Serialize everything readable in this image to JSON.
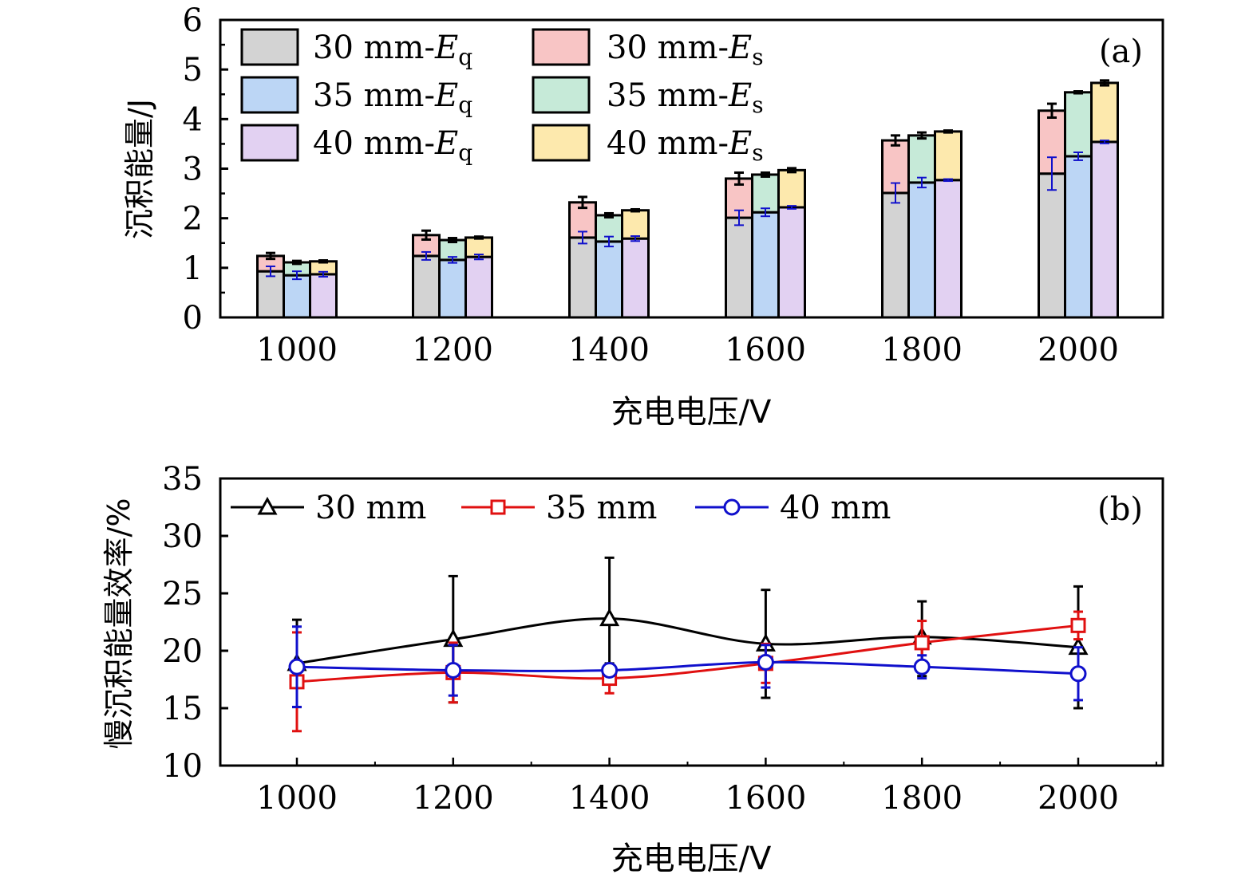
{
  "chart_data": [
    {
      "type": "bar",
      "stacked": true,
      "panel_label": "(a)",
      "title": "",
      "xlabel": "充电电压/V",
      "ylabel": "沉积能量/J",
      "ylim": [
        0,
        6
      ],
      "yticks": [
        "0",
        "1",
        "2",
        "3",
        "4",
        "5",
        "6"
      ],
      "categories": [
        "1000",
        "1200",
        "1400",
        "1600",
        "1800",
        "2000"
      ],
      "legend_position": "top-left",
      "groups": [
        {
          "name": "30 mm",
          "series": [
            {
              "name": "30 mm-Eq",
              "label_main": "30 mm-",
              "label_var": "E",
              "label_sub": "q",
              "color": "#d3d3d3",
              "values": [
                0.93,
                1.24,
                1.61,
                2.01,
                2.51,
                2.9
              ],
              "errors": [
                0.1,
                0.08,
                0.12,
                0.15,
                0.2,
                0.33
              ]
            },
            {
              "name": "30 mm-Es",
              "label_main": "30 mm-",
              "label_var": "E",
              "label_sub": "s",
              "color": "#f8c5c5",
              "totals": [
                1.24,
                1.66,
                2.32,
                2.8,
                3.57,
                4.17
              ],
              "errors": [
                0.06,
                0.09,
                0.11,
                0.12,
                0.1,
                0.14
              ]
            }
          ]
        },
        {
          "name": "35 mm",
          "series": [
            {
              "name": "35 mm-Eq",
              "label_main": "35 mm-",
              "label_var": "E",
              "label_sub": "q",
              "color": "#bcd6f5",
              "values": [
                0.85,
                1.16,
                1.53,
                2.12,
                2.72,
                3.25
              ],
              "errors": [
                0.08,
                0.06,
                0.1,
                0.08,
                0.1,
                0.08
              ]
            },
            {
              "name": "35 mm-Es",
              "label_main": "35 mm-",
              "label_var": "E",
              "label_sub": "s",
              "color": "#c6ead8",
              "totals": [
                1.11,
                1.56,
                2.06,
                2.88,
                3.67,
                4.54
              ],
              "errors": [
                0.03,
                0.04,
                0.04,
                0.04,
                0.06,
                0.02
              ]
            }
          ]
        },
        {
          "name": "40 mm",
          "series": [
            {
              "name": "40 mm-Eq",
              "label_main": "40 mm-",
              "label_var": "E",
              "label_sub": "q",
              "color": "#e2d1f2",
              "values": [
                0.87,
                1.22,
                1.59,
                2.22,
                2.77,
                3.54
              ],
              "errors": [
                0.05,
                0.05,
                0.05,
                0.03,
                0.02,
                0.03
              ]
            },
            {
              "name": "40 mm-Es",
              "label_main": "40 mm-",
              "label_var": "E",
              "label_sub": "s",
              "color": "#fde9ad",
              "totals": [
                1.13,
                1.61,
                2.16,
                2.97,
                3.75,
                4.73
              ],
              "errors": [
                0.02,
                0.02,
                0.02,
                0.04,
                0.02,
                0.05
              ]
            }
          ]
        }
      ],
      "error_colors": {
        "Eq": "#1010cc",
        "Es": "#000000"
      }
    },
    {
      "type": "line",
      "panel_label": "(b)",
      "title": "",
      "xlabel": "充电电压/V",
      "ylabel": "慢沉积能量效率/%",
      "ylim": [
        10,
        35
      ],
      "xlim": [
        800,
        2100
      ],
      "yticks": [
        "10",
        "15",
        "20",
        "25",
        "30",
        "35"
      ],
      "x": [
        1000,
        1200,
        1400,
        1600,
        1800,
        2000
      ],
      "xticks": [
        "1000",
        "1200",
        "1400",
        "1600",
        "1800",
        "2000"
      ],
      "legend_position": "top-left",
      "series": [
        {
          "name": "30 mm",
          "marker": "triangle",
          "color": "#000000",
          "values": [
            18.9,
            21.0,
            22.8,
            20.6,
            21.2,
            20.3
          ],
          "err_low": [
            3.8,
            5.5,
            3.9,
            4.7,
            3.4,
            5.3
          ],
          "err_high": [
            3.8,
            5.5,
            5.3,
            4.7,
            3.1,
            5.3
          ]
        },
        {
          "name": "35 mm",
          "marker": "square",
          "color": "#e01010",
          "values": [
            17.3,
            18.1,
            17.6,
            18.9,
            20.7,
            22.2
          ],
          "err_low": [
            4.3,
            2.6,
            1.3,
            1.7,
            2.0,
            1.2
          ],
          "err_high": [
            4.3,
            2.6,
            0.0,
            1.7,
            1.9,
            1.2
          ]
        },
        {
          "name": "40 mm",
          "marker": "circle",
          "color": "#1010cc",
          "values": [
            18.6,
            18.3,
            18.3,
            19.0,
            18.6,
            18.0
          ],
          "err_low": [
            3.5,
            2.2,
            0.0,
            2.2,
            1.0,
            2.3
          ],
          "err_high": [
            3.5,
            2.2,
            0.0,
            1.5,
            1.0,
            2.3
          ]
        }
      ]
    }
  ]
}
